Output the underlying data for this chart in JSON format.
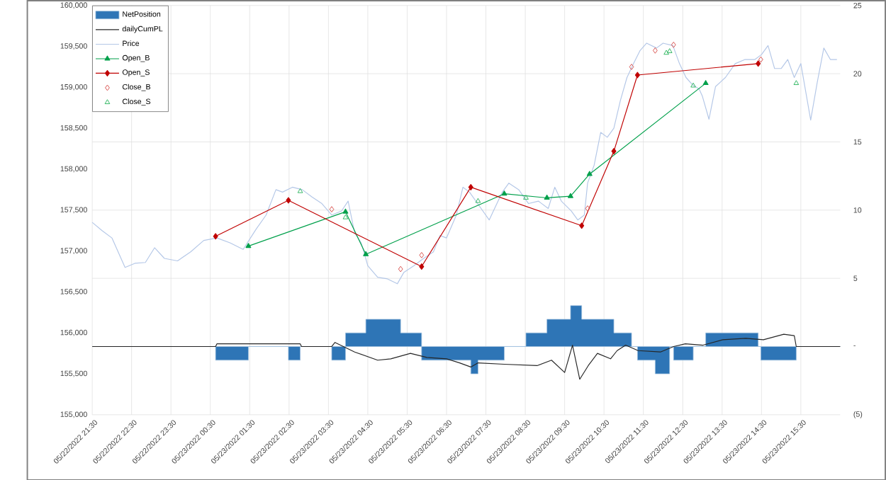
{
  "chart_data": {
    "type": "line",
    "xlim": [
      "2022-05-22T21:30",
      "2022-05-23T16:30"
    ],
    "xticks": [
      {
        "value": "2022-05-22T21:30",
        "label": "05/22/2022 21:30"
      },
      {
        "value": "2022-05-22T22:30",
        "label": "05/22/2022 22:30"
      },
      {
        "value": "2022-05-22T23:30",
        "label": "05/22/2022 23:30"
      },
      {
        "value": "2022-05-23T00:30",
        "label": "05/23/2022 00:30"
      },
      {
        "value": "2022-05-23T01:30",
        "label": "05/23/2022 01:30"
      },
      {
        "value": "2022-05-23T02:30",
        "label": "05/23/2022 02:30"
      },
      {
        "value": "2022-05-23T03:30",
        "label": "05/23/2022 03:30"
      },
      {
        "value": "2022-05-23T04:30",
        "label": "05/23/2022 04:30"
      },
      {
        "value": "2022-05-23T05:30",
        "label": "05/23/2022 05:30"
      },
      {
        "value": "2022-05-23T06:30",
        "label": "05/23/2022 06:30"
      },
      {
        "value": "2022-05-23T07:30",
        "label": "05/23/2022 07:30"
      },
      {
        "value": "2022-05-23T08:30",
        "label": "05/23/2022 08:30"
      },
      {
        "value": "2022-05-23T09:30",
        "label": "05/23/2022 09:30"
      },
      {
        "value": "2022-05-23T10:30",
        "label": "05/23/2022 10:30"
      },
      {
        "value": "2022-05-23T11:30",
        "label": "05/23/2022 11:30"
      },
      {
        "value": "2022-05-23T12:30",
        "label": "05/23/2022 12:30"
      },
      {
        "value": "2022-05-23T13:30",
        "label": "05/23/2022 13:30"
      },
      {
        "value": "2022-05-23T14:30",
        "label": "05/23/2022 14:30"
      },
      {
        "value": "2022-05-23T15:30",
        "label": "05/23/2022 15:30"
      }
    ],
    "ylim": [
      155000,
      160000
    ],
    "yticks": [
      {
        "value": 155000,
        "label": "155,000"
      },
      {
        "value": 155500,
        "label": "155,500"
      },
      {
        "value": 156000,
        "label": "156,000"
      },
      {
        "value": 156500,
        "label": "156,500"
      },
      {
        "value": 157000,
        "label": "157,000"
      },
      {
        "value": 157500,
        "label": "157,500"
      },
      {
        "value": 158000,
        "label": "158,000"
      },
      {
        "value": 158500,
        "label": "158,500"
      },
      {
        "value": 159000,
        "label": "159,000"
      },
      {
        "value": 159500,
        "label": "159,500"
      },
      {
        "value": 160000,
        "label": "160,000"
      }
    ],
    "y2lim": [
      -5,
      25
    ],
    "y2ticks": [
      {
        "value": -5,
        "label": "(5)"
      },
      {
        "value": 0,
        "label": "-"
      },
      5,
      10,
      15,
      20,
      25
    ],
    "grid": true,
    "legend": "top left",
    "series": [
      {
        "name": "NetPosition",
        "type": "area",
        "axis": "y2",
        "color": "#2e75b6",
        "x": [
          "2022-05-22T21:30",
          "2022-05-23T00:38",
          "2022-05-23T00:38",
          "2022-05-23T01:28",
          "2022-05-23T01:28",
          "2022-05-23T02:29",
          "2022-05-23T02:29",
          "2022-05-23T02:47",
          "2022-05-23T02:47",
          "2022-05-23T03:35",
          "2022-05-23T03:35",
          "2022-05-23T03:56",
          "2022-05-23T03:56",
          "2022-05-23T04:27",
          "2022-05-23T04:27",
          "2022-05-23T05:20",
          "2022-05-23T05:20",
          "2022-05-23T05:52",
          "2022-05-23T05:52",
          "2022-05-23T07:07",
          "2022-05-23T07:07",
          "2022-05-23T07:18",
          "2022-05-23T07:18",
          "2022-05-23T07:58",
          "2022-05-23T07:58",
          "2022-05-23T08:31",
          "2022-05-23T08:31",
          "2022-05-23T09:03",
          "2022-05-23T09:03",
          "2022-05-23T09:39",
          "2022-05-23T09:39",
          "2022-05-23T09:56",
          "2022-05-23T09:56",
          "2022-05-23T10:45",
          "2022-05-23T10:45",
          "2022-05-23T11:12",
          "2022-05-23T11:12",
          "2022-05-23T11:21",
          "2022-05-23T11:21",
          "2022-05-23T11:48",
          "2022-05-23T11:48",
          "2022-05-23T12:10",
          "2022-05-23T12:10",
          "2022-05-23T12:16",
          "2022-05-23T12:16",
          "2022-05-23T12:46",
          "2022-05-23T12:46",
          "2022-05-23T13:05",
          "2022-05-23T13:05",
          "2022-05-23T14:25",
          "2022-05-23T14:25",
          "2022-05-23T14:29",
          "2022-05-23T14:29",
          "2022-05-23T15:23",
          "2022-05-23T15:23",
          "2022-05-23T16:30"
        ],
        "values": [
          0,
          0,
          -1,
          -1,
          0,
          0,
          -1,
          -1,
          0,
          0,
          -1,
          -1,
          1,
          1,
          2,
          2,
          1,
          1,
          -1,
          -1,
          -2,
          -2,
          -1,
          -1,
          0,
          0,
          1,
          1,
          2,
          2,
          3,
          3,
          2,
          2,
          1,
          1,
          0,
          0,
          -1,
          -1,
          -2,
          -2,
          0,
          0,
          -1,
          -1,
          0,
          0,
          1,
          1,
          0,
          0,
          -1,
          -1,
          0,
          0
        ]
      },
      {
        "name": "dailyCumPL",
        "axis": "y2",
        "color": "#262626",
        "marker": "none",
        "x": [
          "2022-05-22T21:30",
          "2022-05-23T00:38",
          "2022-05-23T00:40",
          "2022-05-23T02:47",
          "2022-05-23T02:49",
          "2022-05-23T03:35",
          "2022-05-23T03:40",
          "2022-05-23T04:10",
          "2022-05-23T04:45",
          "2022-05-23T05:05",
          "2022-05-23T05:35",
          "2022-05-23T06:00",
          "2022-05-23T06:30",
          "2022-05-23T06:50",
          "2022-05-23T07:07",
          "2022-05-23T07:18",
          "2022-05-23T07:58",
          "2022-05-23T08:48",
          "2022-05-23T09:10",
          "2022-05-23T09:30",
          "2022-05-23T09:42",
          "2022-05-23T09:53",
          "2022-05-23T10:06",
          "2022-05-23T10:20",
          "2022-05-23T10:40",
          "2022-05-23T10:50",
          "2022-05-23T11:03",
          "2022-05-23T11:22",
          "2022-05-23T11:56",
          "2022-05-23T12:16",
          "2022-05-23T12:34",
          "2022-05-23T13:01",
          "2022-05-23T13:31",
          "2022-05-23T14:06",
          "2022-05-23T14:33",
          "2022-05-23T15:04",
          "2022-05-23T15:20",
          "2022-05-23T15:23",
          "2022-05-23T16:30"
        ],
        "values": [
          0,
          0,
          0.2,
          0.2,
          0,
          0,
          0.3,
          -0.4,
          -1.0,
          -0.9,
          -0.5,
          -0.8,
          -0.9,
          -1.2,
          -1.5,
          -1.2,
          -1.3,
          -1.4,
          -1.0,
          -1.9,
          0.1,
          -2.4,
          -1.4,
          -0.5,
          -0.9,
          -0.3,
          0.1,
          -0.3,
          -0.4,
          0,
          0.2,
          0.1,
          0.5,
          0.6,
          0.5,
          0.9,
          0.8,
          0,
          0
        ]
      },
      {
        "name": "Price",
        "color": "#b4c7e7",
        "marker": "none",
        "x": [
          "2022-05-22T21:30",
          "2022-05-22T21:45",
          "2022-05-22T22:00",
          "2022-05-22T22:20",
          "2022-05-22T22:35",
          "2022-05-22T22:51",
          "2022-05-22T23:05",
          "2022-05-22T23:20",
          "2022-05-22T23:40",
          "2022-05-23T00:00",
          "2022-05-23T00:20",
          "2022-05-23T00:40",
          "2022-05-23T01:00",
          "2022-05-23T01:20",
          "2022-05-23T01:40",
          "2022-05-23T01:55",
          "2022-05-23T02:10",
          "2022-05-23T02:20",
          "2022-05-23T02:35",
          "2022-05-23T02:50",
          "2022-05-23T03:05",
          "2022-05-23T03:20",
          "2022-05-23T03:35",
          "2022-05-23T03:50",
          "2022-05-23T04:00",
          "2022-05-23T04:10",
          "2022-05-23T04:20",
          "2022-05-23T04:30",
          "2022-05-23T04:45",
          "2022-05-23T05:00",
          "2022-05-23T05:15",
          "2022-05-23T05:25",
          "2022-05-23T05:40",
          "2022-05-23T05:55",
          "2022-05-23T06:10",
          "2022-05-23T06:20",
          "2022-05-23T06:30",
          "2022-05-23T06:45",
          "2022-05-23T06:55",
          "2022-05-23T07:05",
          "2022-05-23T07:20",
          "2022-05-23T07:35",
          "2022-05-23T07:45",
          "2022-05-23T07:55",
          "2022-05-23T08:05",
          "2022-05-23T08:20",
          "2022-05-23T08:35",
          "2022-05-23T08:50",
          "2022-05-23T09:05",
          "2022-05-23T09:15",
          "2022-05-23T09:25",
          "2022-05-23T09:40",
          "2022-05-23T09:50",
          "2022-05-23T10:00",
          "2022-05-23T10:05",
          "2022-05-23T10:15",
          "2022-05-23T10:25",
          "2022-05-23T10:35",
          "2022-05-23T10:45",
          "2022-05-23T10:55",
          "2022-05-23T11:05",
          "2022-05-23T11:15",
          "2022-05-23T11:25",
          "2022-05-23T11:35",
          "2022-05-23T11:50",
          "2022-05-23T12:00",
          "2022-05-23T12:15",
          "2022-05-23T12:25",
          "2022-05-23T12:35",
          "2022-05-23T12:45",
          "2022-05-23T12:55",
          "2022-05-23T13:00",
          "2022-05-23T13:10",
          "2022-05-23T13:20",
          "2022-05-23T13:35",
          "2022-05-23T13:50",
          "2022-05-23T14:05",
          "2022-05-23T14:20",
          "2022-05-23T14:30",
          "2022-05-23T14:40",
          "2022-05-23T14:50",
          "2022-05-23T15:00",
          "2022-05-23T15:10",
          "2022-05-23T15:20",
          "2022-05-23T15:30",
          "2022-05-23T15:45",
          "2022-05-23T15:55",
          "2022-05-23T16:05",
          "2022-05-23T16:15",
          "2022-05-23T16:25"
        ],
        "values": [
          157350,
          157250,
          157160,
          156800,
          156850,
          156860,
          157040,
          156910,
          156880,
          156990,
          157130,
          157160,
          157100,
          157020,
          157270,
          157440,
          157750,
          157720,
          157780,
          157750,
          157660,
          157580,
          157440,
          157490,
          157610,
          157220,
          157100,
          156820,
          156680,
          156660,
          156600,
          156740,
          156820,
          156910,
          156990,
          157190,
          157160,
          157440,
          157780,
          157720,
          157550,
          157380,
          157550,
          157720,
          157830,
          157750,
          157580,
          157610,
          157520,
          157780,
          157610,
          157490,
          157380,
          157440,
          157830,
          158050,
          158450,
          158390,
          158500,
          158840,
          159120,
          159290,
          159450,
          159540,
          159480,
          159540,
          159510,
          159290,
          159120,
          159030,
          158980,
          158890,
          158610,
          159010,
          159120,
          159290,
          159340,
          159340,
          159400,
          159510,
          159230,
          159230,
          159340,
          159120,
          159290,
          158600,
          159060,
          159480,
          159340,
          159340
        ]
      },
      {
        "name": "Open_B",
        "color": "#00a04b",
        "marker": "triangle",
        "x": [
          "2022-05-23T01:28",
          "2022-05-23T03:56",
          "2022-05-23T04:27",
          "2022-05-23T07:58",
          "2022-05-23T09:03",
          "2022-05-23T09:39",
          "2022-05-23T10:08",
          "2022-05-23T13:05"
        ],
        "values": [
          157060,
          157480,
          156960,
          157700,
          157650,
          157670,
          157940,
          159050
        ]
      },
      {
        "name": "Open_S",
        "color": "#c00000",
        "marker": "diamond",
        "x": [
          "2022-05-23T00:38",
          "2022-05-23T02:29",
          "2022-05-23T05:52",
          "2022-05-23T07:07",
          "2022-05-23T09:56",
          "2022-05-23T10:45",
          "2022-05-23T11:21",
          "2022-05-23T14:25"
        ],
        "values": [
          157180,
          157620,
          156810,
          157780,
          157310,
          158220,
          159150,
          159290
        ]
      },
      {
        "name": "Close_B",
        "type": "scatter",
        "color": "#d9534f",
        "marker": "diamond",
        "x": [
          "2022-05-23T03:35",
          "2022-05-23T05:20",
          "2022-05-23T05:52",
          "2022-05-23T10:05",
          "2022-05-23T11:12",
          "2022-05-23T11:48",
          "2022-05-23T12:16",
          "2022-05-23T14:29"
        ],
        "values": [
          157510,
          156780,
          156950,
          157520,
          159250,
          159450,
          159520,
          159340
        ]
      },
      {
        "name": "Close_S",
        "type": "scatter",
        "color": "#33b864",
        "marker": "triangle",
        "x": [
          "2022-05-23T02:47",
          "2022-05-23T03:56",
          "2022-05-23T07:18",
          "2022-05-23T08:31",
          "2022-05-23T12:05",
          "2022-05-23T12:10",
          "2022-05-23T12:46",
          "2022-05-23T15:23"
        ],
        "values": [
          157730,
          157410,
          157610,
          157650,
          159420,
          159440,
          159020,
          159050
        ]
      }
    ]
  }
}
